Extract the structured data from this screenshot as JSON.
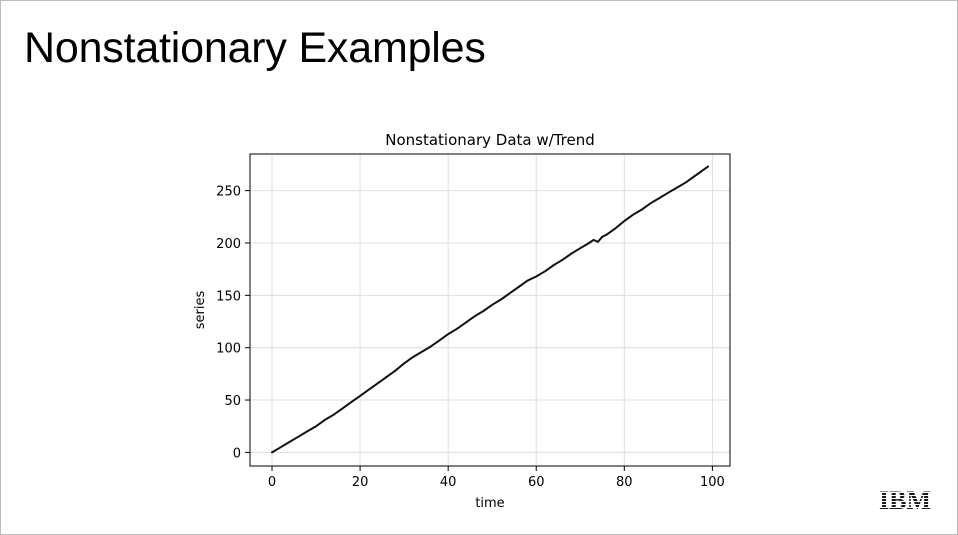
{
  "slide": {
    "title": "Nonstationary Examples"
  },
  "chart_data": {
    "type": "line",
    "title": "Nonstationary Data w/Trend",
    "xlabel": "time",
    "ylabel": "series",
    "xlim": [
      -5,
      104
    ],
    "ylim": [
      -13,
      285
    ],
    "xticks": [
      0,
      20,
      40,
      60,
      80,
      100
    ],
    "yticks": [
      0,
      50,
      100,
      150,
      200,
      250
    ],
    "grid": true,
    "line_color": "#111111",
    "series": [
      {
        "x": [
          0,
          2,
          4,
          6,
          8,
          10,
          12,
          14,
          16,
          18,
          20,
          22,
          24,
          26,
          28,
          30,
          32,
          34,
          36,
          38,
          40,
          42,
          44,
          46,
          48,
          50,
          52,
          54,
          56,
          58,
          60,
          62,
          64,
          66,
          68,
          70,
          72,
          73,
          74,
          75,
          76,
          78,
          80,
          82,
          84,
          86,
          88,
          90,
          92,
          94,
          96,
          98,
          99
        ],
        "y": [
          0,
          5,
          10,
          15,
          20,
          25,
          31,
          36,
          42,
          48,
          54,
          60,
          66,
          72,
          78,
          85,
          91,
          96,
          101,
          107,
          113,
          118,
          124,
          130,
          135,
          141,
          146,
          152,
          158,
          164,
          168,
          173,
          179,
          184,
          190,
          195,
          200,
          203,
          201,
          206,
          208,
          214,
          221,
          227,
          232,
          238,
          243,
          248,
          253,
          258,
          264,
          270,
          273
        ]
      }
    ]
  },
  "branding": {
    "logo_text": "IBM"
  }
}
